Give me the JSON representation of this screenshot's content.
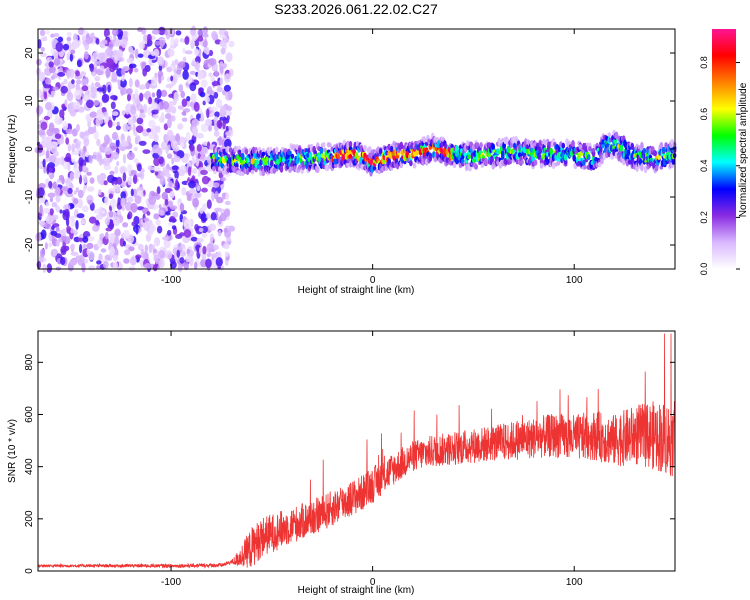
{
  "title": "S233.2026.061.22.02.C27",
  "chart_data": [
    {
      "type": "heatmap",
      "xlabel": "Height of straight line (km)",
      "ylabel": "Frequency (Hz)",
      "xlim": [
        -166,
        150
      ],
      "ylim": [
        -25,
        25
      ],
      "xticks": [
        -100,
        0,
        100
      ],
      "yticks": [
        -20,
        -10,
        0,
        10,
        20
      ],
      "colorbar": {
        "label": "Normalized spectral amplitude",
        "range": [
          0.0,
          0.93
        ],
        "ticks": [
          "0.0",
          "0.2",
          "0.4",
          "0.6",
          "0.8"
        ],
        "tick_values": [
          0.0,
          0.2,
          0.4,
          0.6,
          0.8
        ],
        "colors": [
          "#ffffff",
          "#d9b8ff",
          "#8a2be2",
          "#0000ff",
          "#00ffff",
          "#00ff00",
          "#ffff00",
          "#ff8000",
          "#ff0000",
          "#ff1493"
        ]
      },
      "noise_region": {
        "x_range": [
          -166,
          -70
        ],
        "y_range": [
          -25,
          25
        ],
        "amplitude": "0.05-0.15"
      },
      "signal_band_center_hz": {
        "x": [
          -80,
          -70,
          -60,
          -50,
          -40,
          -30,
          -20,
          -10,
          -5,
          0,
          5,
          10,
          20,
          30,
          40,
          50,
          60,
          70,
          80,
          90,
          100,
          110,
          115,
          120,
          130,
          140,
          150
        ],
        "y": [
          -2,
          -2.5,
          -2.5,
          -2.5,
          -2,
          -2,
          -1.5,
          -1,
          -1.5,
          -3,
          -2,
          -1.5,
          -1,
          0,
          -1,
          -1.5,
          -1,
          -0.5,
          -1,
          -1,
          -1,
          -2,
          0.5,
          1,
          -1.5,
          -2,
          -1
        ]
      },
      "signal_peak_amplitude": 0.9
    },
    {
      "type": "line",
      "color": "#ee3333",
      "xlabel": "Height of straight line (km)",
      "ylabel": "SNR (10 * v/v)",
      "xlim": [
        -166,
        150
      ],
      "ylim": [
        0,
        920
      ],
      "xticks": [
        -100,
        0,
        100
      ],
      "yticks": [
        0,
        200,
        400,
        600,
        800
      ],
      "trend": {
        "x": [
          -166,
          -140,
          -100,
          -75,
          -68,
          -60,
          -55,
          -45,
          -35,
          -25,
          -15,
          -5,
          0,
          10,
          20,
          30,
          40,
          50,
          60,
          70,
          80,
          90,
          100,
          110,
          120,
          130,
          140,
          150
        ],
        "y": [
          20,
          20,
          20,
          22,
          40,
          90,
          130,
          160,
          190,
          220,
          260,
          300,
          330,
          390,
          440,
          460,
          470,
          480,
          490,
          500,
          510,
          520,
          510,
          520,
          500,
          520,
          520,
          500
        ]
      },
      "noise_amplitude": {
        "x": [
          -166,
          -70,
          -60,
          -40,
          0,
          20,
          60,
          100,
          120,
          150
        ],
        "y": [
          5,
          8,
          80,
          70,
          70,
          60,
          70,
          90,
          100,
          150
        ]
      },
      "peak_max": 910
    }
  ]
}
